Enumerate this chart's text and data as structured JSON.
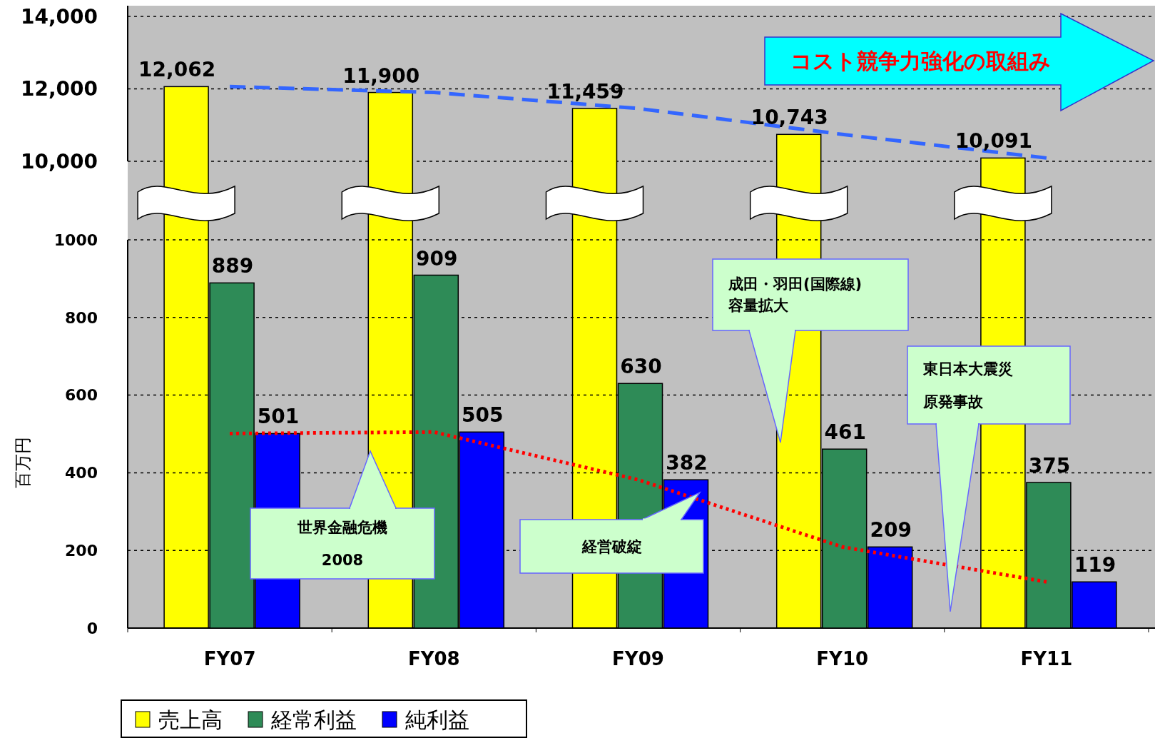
{
  "chart_data": [
    {
      "type": "bar",
      "categories": [
        null,
        null,
        null,
        null,
        null
      ],
      "series": [
        {
          "name": "売上高",
          "color": "#ffff00",
          "values": [
            12062,
            11900,
            11459,
            10743,
            10091
          ],
          "value_labels": [
            "12,062",
            "11,900",
            "11,459",
            "10,743",
            "10,091"
          ]
        },
        {
          "type": "line",
          "color": "#3366ff",
          "line_style": "dashed",
          "values": [
            12062,
            11900,
            11459,
            10743,
            10091
          ]
        }
      ],
      "ylim": [
        10000,
        14000
      ],
      "yticks": [
        {
          "value": 10000,
          "label": "10,000"
        },
        {
          "value": 12000,
          "label": "12,000"
        },
        {
          "value": 14000,
          "label": "14,000"
        }
      ],
      "grid": "y",
      "tick_labels": "y",
      "legend": "bottom left",
      "annotations": [
        "コスト競争力強化の取組み"
      ]
    },
    {
      "type": "bar",
      "ylabel": "百万円",
      "categories": [
        "FY07",
        "FY08",
        "FY09",
        "FY10",
        "FY11"
      ],
      "series": [
        {
          "name": "経常利益",
          "color": "#2e8b57",
          "values": [
            889,
            909,
            630,
            461,
            375
          ],
          "value_labels": [
            "889",
            "909",
            "630",
            "461",
            "375"
          ]
        },
        {
          "name": "純利益",
          "color": "#0000ff",
          "values": [
            501,
            505,
            382,
            209,
            119
          ],
          "value_labels": [
            "501",
            "505",
            "382",
            "209",
            "119"
          ]
        },
        {
          "type": "line",
          "color": "#ff0000",
          "line_style": "dotted",
          "values": [
            501,
            505,
            382,
            209,
            119
          ]
        }
      ],
      "ylim": [
        0,
        1000
      ],
      "yticks": [
        0,
        200,
        400,
        600,
        800,
        1000
      ],
      "grid": "y",
      "legend": "bottom left",
      "annotations": [
        "世界金融危機\n2008",
        "経営破綻",
        "成田・羽田(国際線)容量拡大",
        "東日本大震災原発事故"
      ]
    }
  ]
}
